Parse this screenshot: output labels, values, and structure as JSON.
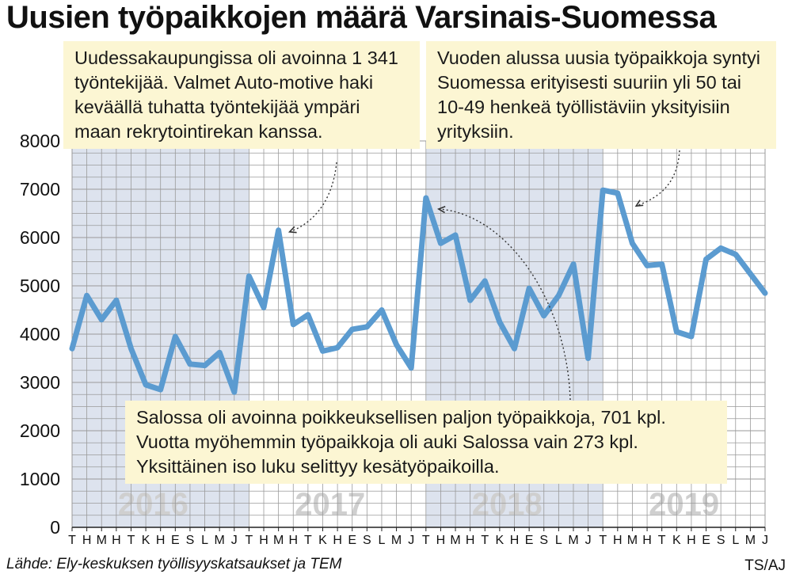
{
  "title": "Uusien työpaikkojen määrä Varsinais-Suomessa",
  "source": "Lähde: Ely-keskuksen työllisyyskatsaukset ja TEM",
  "credit": "TS/AJ",
  "colors": {
    "line": "#5b9bd0",
    "shade": "#dde3ee",
    "grid": "#9a9a9a",
    "year_label": "#cfcfcf",
    "callout_bg": "#fcf6d3"
  },
  "callouts": [
    {
      "text": "Uudessakaupungissa oli avoinna 1 341 työntekijää. Valmet Auto-motive haki keväällä tuhatta työntekijää ympäri maan rekrytointirekan kanssa."
    },
    {
      "text": "Vuoden alussa uusia työpaikkoja syntyi Suomessa erityisesti suuriin yli 50 tai 10-49 henkeä työllistäviin yksityisiin yrityksiin."
    },
    {
      "text": "Salossa oli avoinna poikkeuksellisen paljon työpaikkoja, 701 kpl. Vuotta myöhemmin työpaikkoja oli auki Salossa vain 273 kpl. Yksittäinen iso luku selittyy kesätyöpaikoilla."
    }
  ],
  "chart_data": {
    "type": "line",
    "xlabel": "",
    "ylabel": "",
    "ylim": [
      0,
      8000
    ],
    "yticks": [
      0,
      1000,
      2000,
      3000,
      4000,
      5000,
      6000,
      7000,
      8000
    ],
    "grid": true,
    "legend": "none",
    "year_labels": [
      "2016",
      "2017",
      "2018",
      "2019"
    ],
    "shaded_years": [
      "2016",
      "2018"
    ],
    "x": [
      "T",
      "H",
      "M",
      "H",
      "T",
      "K",
      "H",
      "E",
      "S",
      "L",
      "M",
      "J",
      "T",
      "H",
      "M",
      "H",
      "T",
      "K",
      "H",
      "E",
      "S",
      "L",
      "M",
      "J",
      "T",
      "H",
      "M",
      "H",
      "T",
      "K",
      "H",
      "E",
      "S",
      "L",
      "M",
      "J",
      "T",
      "H",
      "M",
      "H",
      "T",
      "K",
      "H",
      "E",
      "S",
      "L",
      "M",
      "J"
    ],
    "series": [
      {
        "values": [
          3700,
          4800,
          4300,
          4700,
          3700,
          2950,
          2850,
          3950,
          3380,
          3350,
          3620,
          2800,
          5200,
          4550,
          6150,
          4200,
          4400,
          3650,
          3720,
          4100,
          4150,
          4500,
          3780,
          3300,
          6820,
          5880,
          6050,
          4700,
          5100,
          4250,
          3700,
          4950,
          4380,
          4800,
          5450,
          3500,
          6980,
          6920,
          5880,
          5420,
          5450,
          4050,
          3950,
          5550,
          5780,
          5650,
          5250,
          4850
        ]
      }
    ]
  }
}
